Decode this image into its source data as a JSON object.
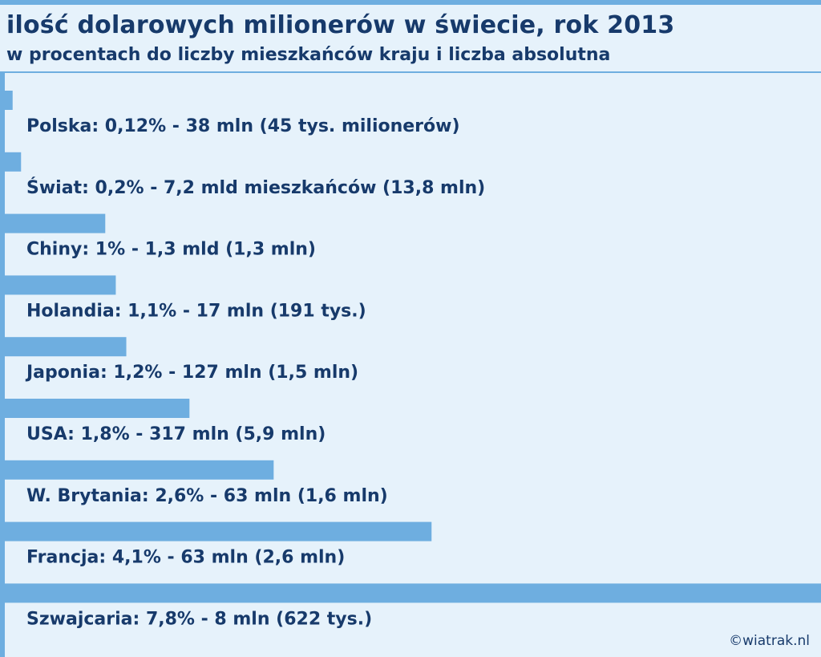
{
  "chart_data": {
    "type": "bar",
    "orientation": "horizontal",
    "title": "ilość dolarowych milionerów w świecie, rok 2013",
    "subtitle": "w procentach do liczby mieszkańców kraju i liczba absolutna",
    "xlim": [
      0,
      7.8
    ],
    "grid": false,
    "bar_color": "#6eaee0",
    "categories": [
      "Polska",
      "Świat",
      "Chiny",
      "Holandia",
      "Japonia",
      "USA",
      "W. Brytania",
      "Francja",
      "Szwajcaria"
    ],
    "values": [
      0.12,
      0.2,
      1.0,
      1.1,
      1.2,
      1.8,
      2.6,
      4.1,
      7.8
    ],
    "labels": [
      "Polska: 0,12% - 38 mln (45 tys. milionerów)",
      "Świat: 0,2% - 7,2 mld mieszkańców (13,8 mln)",
      "Chiny: 1% - 1,3 mld (1,3 mln)",
      "Holandia: 1,1% - 17 mln (191 tys.)",
      "Japonia: 1,2% - 127 mln (1,5 mln)",
      "USA:  1,8% - 317 mln (5,9 mln)",
      "W. Brytania: 2,6% - 63 mln (1,6 mln)",
      "Francja: 4,1% - 63 mln (2,6 mln)",
      "Szwajcaria: 7,8% - 8 mln (622 tys.)"
    ]
  },
  "watermark": "©wiatrak.nl",
  "colors": {
    "background": "#e6f2fb",
    "bar": "#6eaee0",
    "text": "#173a6b"
  }
}
